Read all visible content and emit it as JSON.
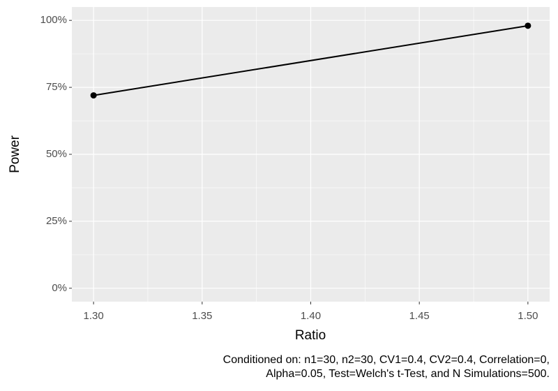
{
  "chart_data": {
    "type": "line",
    "x": [
      1.3,
      1.5
    ],
    "series": [
      {
        "color": "#000000",
        "values": [
          72,
          98
        ]
      }
    ],
    "xlabel": "Ratio",
    "ylabel": "Power",
    "xlim": [
      1.29,
      1.51
    ],
    "ylim": [
      -5,
      105
    ],
    "xticks": [
      {
        "value": 1.3,
        "label": "1.30"
      },
      {
        "value": 1.35,
        "label": "1.35"
      },
      {
        "value": 1.4,
        "label": "1.40"
      },
      {
        "value": 1.45,
        "label": "1.45"
      },
      {
        "value": 1.5,
        "label": "1.50"
      }
    ],
    "yticks": [
      {
        "value": 0,
        "label": "0%"
      },
      {
        "value": 25,
        "label": "25%"
      },
      {
        "value": 50,
        "label": "50%"
      },
      {
        "value": 75,
        "label": "75%"
      },
      {
        "value": 100,
        "label": "100%"
      }
    ],
    "grid": true,
    "minor_grid": true,
    "panel_color": "#ebebeb",
    "caption": [
      "Conditioned on: n1=30, n2=30, CV1=0.4, CV2=0.4, Correlation=0,",
      "Alpha=0.05, Test=Welch's t-Test, and N Simulations=500."
    ]
  }
}
